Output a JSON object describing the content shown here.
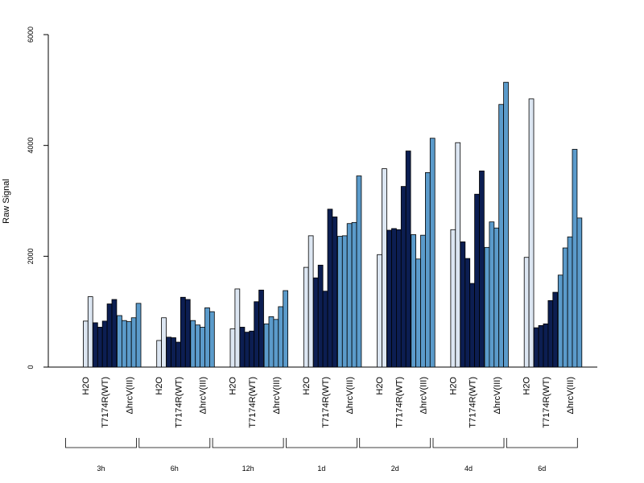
{
  "chart_data": {
    "type": "bar",
    "ylabel": "Raw Signal",
    "ylim": [
      0,
      6000
    ],
    "yticks": [
      0,
      2000,
      4000,
      6000
    ],
    "grid": false,
    "legend": "none",
    "condition_labels": [
      "H2O",
      "T7174R(WT)",
      "ΔhrcV(III)"
    ],
    "condition_colors": [
      "#dce6f2",
      "#0c1e52",
      "#5b9bcb"
    ],
    "groups": [
      {
        "time": "3h",
        "bars": {
          "H2O": [
            0,
            830,
            1270
          ],
          "T7174R(WT)": [
            800,
            720,
            830,
            1140,
            1220
          ],
          "ΔhrcV(III)": [
            930,
            840,
            820,
            890,
            1150
          ]
        }
      },
      {
        "time": "6h",
        "bars": {
          "H2O": [
            0,
            480,
            890
          ],
          "T7174R(WT)": [
            540,
            530,
            450,
            1260,
            1220
          ],
          "ΔhrcV(III)": [
            840,
            760,
            720,
            1070,
            1000
          ]
        }
      },
      {
        "time": "12h",
        "bars": {
          "H2O": [
            0,
            690,
            1410
          ],
          "T7174R(WT)": [
            720,
            630,
            650,
            1180,
            1390
          ],
          "ΔhrcV(III)": [
            780,
            910,
            860,
            1090,
            1380
          ]
        }
      },
      {
        "time": "1d",
        "bars": {
          "H2O": [
            0,
            1800,
            2370
          ],
          "T7174R(WT)": [
            1610,
            1840,
            1370,
            2850,
            2710
          ],
          "ΔhrcV(III)": [
            2360,
            2370,
            2590,
            2610,
            3450
          ]
        }
      },
      {
        "time": "2d",
        "bars": {
          "H2O": [
            0,
            2030,
            3580
          ],
          "T7174R(WT)": [
            2470,
            2500,
            2480,
            3260,
            3900
          ],
          "ΔhrcV(III)": [
            2390,
            1950,
            2380,
            3510,
            4130
          ]
        }
      },
      {
        "time": "4d",
        "bars": {
          "H2O": [
            0,
            2480,
            4050
          ],
          "T7174R(WT)": [
            2260,
            1960,
            1510,
            3120,
            3540
          ],
          "ΔhrcV(III)": [
            2160,
            2620,
            2510,
            4740,
            5140
          ]
        }
      },
      {
        "time": "6d",
        "bars": {
          "H2O": [
            0,
            1980,
            4840
          ],
          "T7174R(WT)": [
            710,
            750,
            780,
            1200,
            1350
          ],
          "ΔhrcV(III)": [
            1660,
            2150,
            2350,
            3930,
            2690
          ]
        }
      }
    ]
  }
}
